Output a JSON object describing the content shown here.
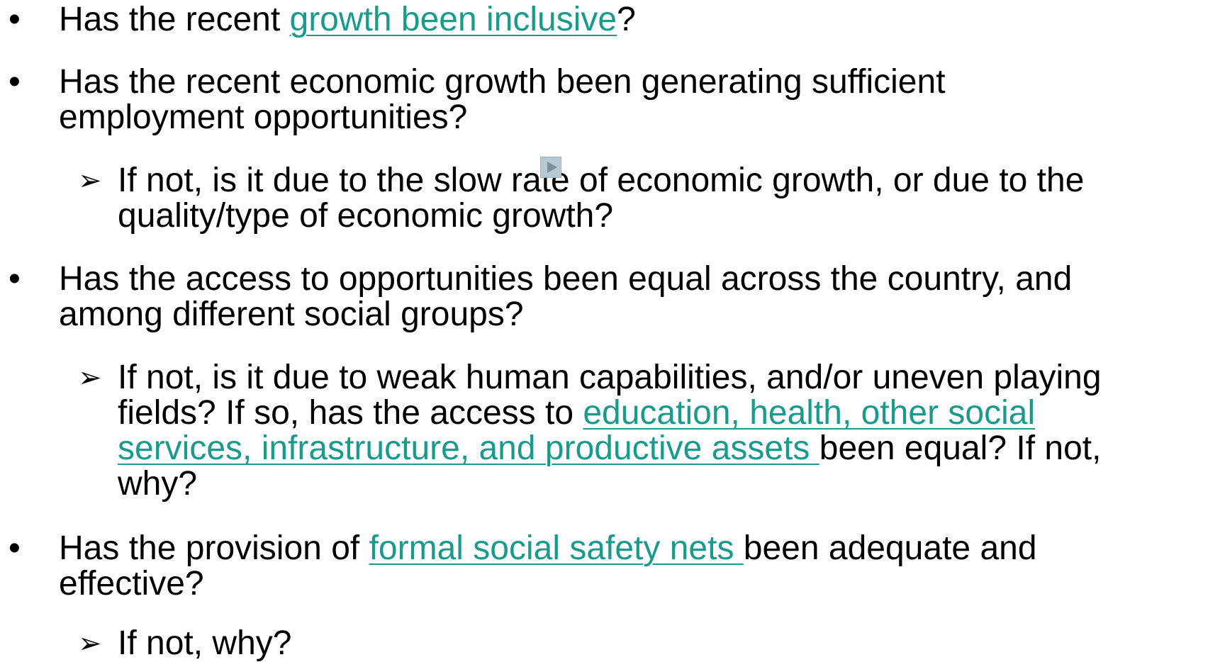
{
  "items": [
    {
      "marker": "•",
      "level": 1,
      "lines": [
        [
          {
            "text": "Has the recent "
          },
          {
            "text": "growth been inclusive",
            "link": true
          },
          {
            "text": "?"
          }
        ]
      ]
    },
    {
      "marker": "•",
      "level": 1,
      "lines": [
        [
          {
            "text": "Has the recent economic growth been generating sufficient"
          }
        ],
        [
          {
            "text": "employment opportunities?"
          }
        ]
      ]
    },
    {
      "marker": "➢",
      "level": 2,
      "lines": [
        [
          {
            "text": "If not, is it due to the slow rate of economic growth, or due to the"
          }
        ],
        [
          {
            "text": "quality/type of economic growth?"
          }
        ]
      ]
    },
    {
      "marker": "•",
      "level": 1,
      "lines": [
        [
          {
            "text": "Has the access to opportunities been equal across the country, and"
          }
        ],
        [
          {
            "text": "among different social groups?"
          }
        ]
      ]
    },
    {
      "marker": "➢",
      "level": 2,
      "lines": [
        [
          {
            "text": "If not, is it due to weak human capabilities, and/or uneven playing"
          }
        ],
        [
          {
            "text": "fields? If so, has the access to "
          },
          {
            "text": "education, health, other social",
            "link": true
          }
        ],
        [
          {
            "text": "services, infrastructure, and productive assets ",
            "link": true
          },
          {
            "text": "been equal? If not,"
          }
        ],
        [
          {
            "text": "why?"
          }
        ]
      ]
    },
    {
      "marker": "•",
      "level": 1,
      "lines": [
        [
          {
            "text": "Has the provision of "
          },
          {
            "text": "formal social safety nets ",
            "link": true
          },
          {
            "text": "been adequate and"
          }
        ],
        [
          {
            "text": "effective?"
          }
        ]
      ]
    },
    {
      "marker": "➢",
      "level": 2,
      "lines": [
        [
          {
            "text": "If not, why?"
          }
        ]
      ]
    }
  ]
}
